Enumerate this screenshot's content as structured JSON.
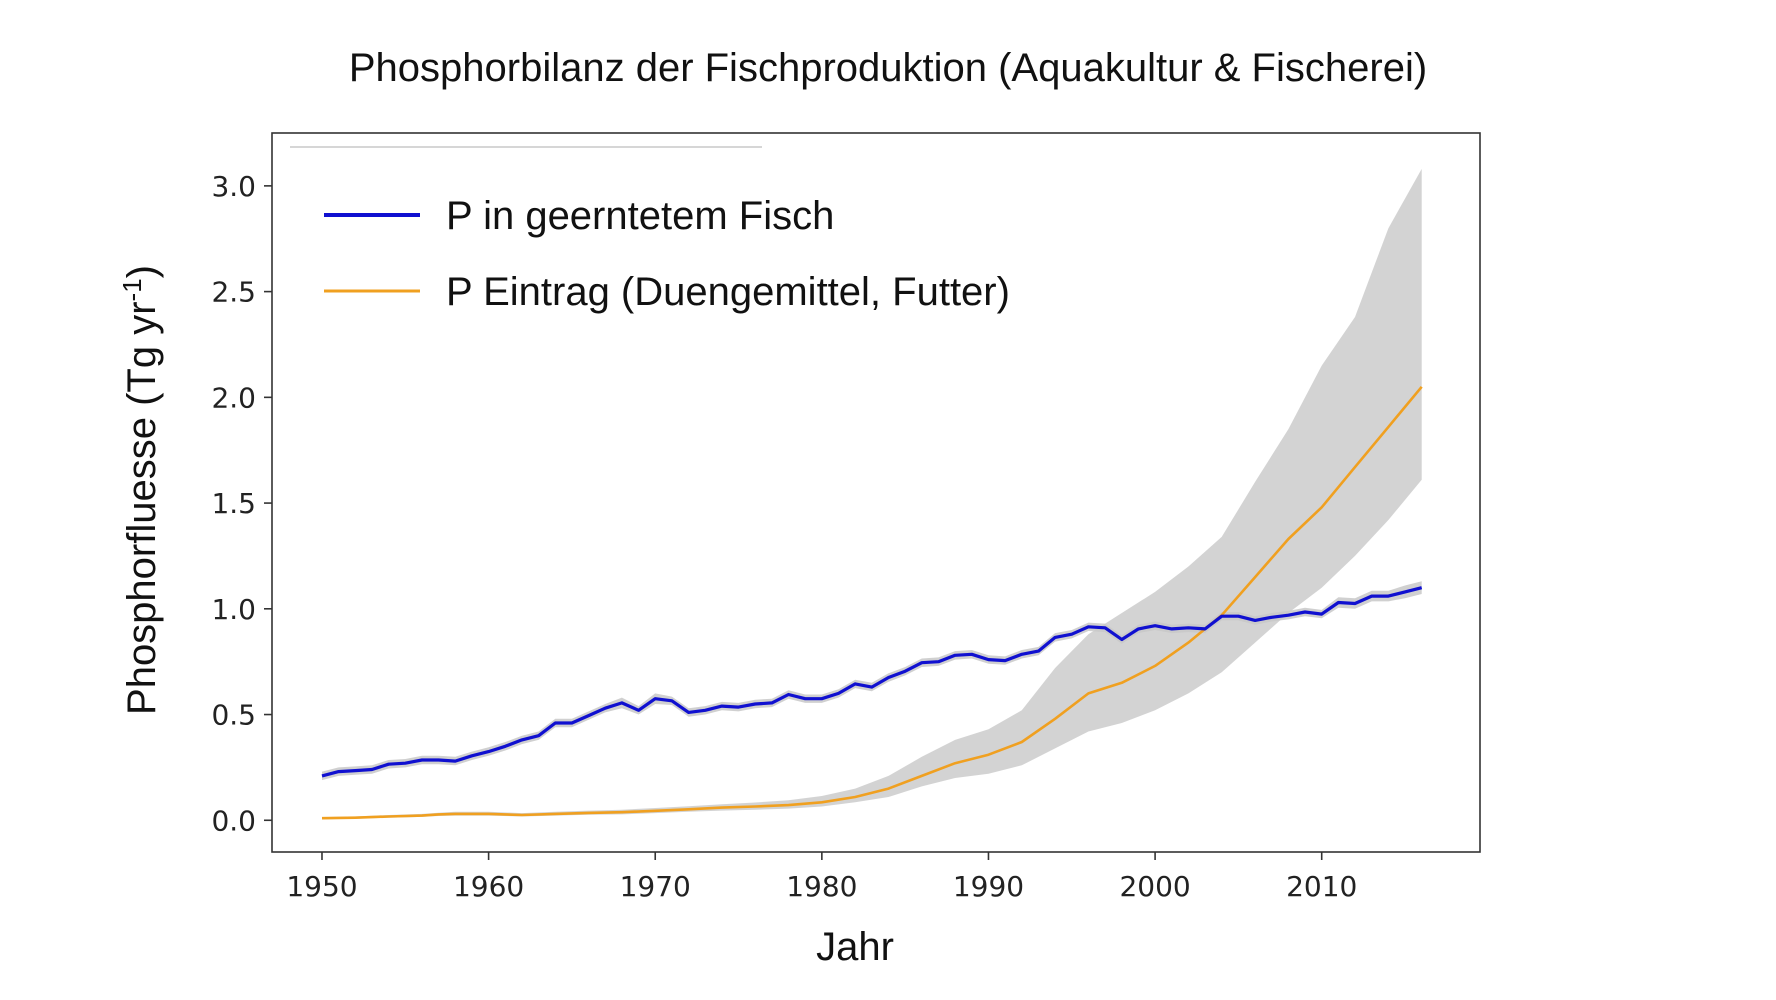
{
  "chart_data": {
    "type": "line",
    "title": "Phosphorbilanz der Fischproduktion (Aquakultur & Fischerei)",
    "xlabel": "Jahr",
    "ylabel": "Phosphorfluesse  (Tg yr",
    "ylabel_superscript": "-1",
    "ylabel_close": ")",
    "xlim": [
      1947,
      2019.5
    ],
    "ylim": [
      -0.15,
      3.25
    ],
    "xticks": [
      1950,
      1960,
      1970,
      1980,
      1990,
      2000,
      2010
    ],
    "xtick_labels": [
      "1950",
      "1960",
      "1970",
      "1980",
      "1990",
      "2000",
      "2010"
    ],
    "yticks": [
      0.0,
      0.5,
      1.0,
      1.5,
      2.0,
      2.5,
      3.0
    ],
    "ytick_labels": [
      "0.0",
      "0.5",
      "1.0",
      "1.5",
      "2.0",
      "2.5",
      "3.0"
    ],
    "legend_position": "top-left",
    "series": [
      {
        "name": "P in geerntetem Fisch",
        "color": "#1010d0",
        "x": [
          1950,
          1951,
          1952,
          1953,
          1954,
          1955,
          1956,
          1957,
          1958,
          1959,
          1960,
          1961,
          1962,
          1963,
          1964,
          1965,
          1966,
          1967,
          1968,
          1969,
          1970,
          1971,
          1972,
          1973,
          1974,
          1975,
          1976,
          1977,
          1978,
          1979,
          1980,
          1981,
          1982,
          1983,
          1984,
          1985,
          1986,
          1987,
          1988,
          1989,
          1990,
          1991,
          1992,
          1993,
          1994,
          1995,
          1996,
          1997,
          1998,
          1999,
          2000,
          2001,
          2002,
          2003,
          2004,
          2005,
          2006,
          2007,
          2008,
          2009,
          2010,
          2011,
          2012,
          2013,
          2014,
          2015,
          2016
        ],
        "values": [
          0.21,
          0.23,
          0.235,
          0.24,
          0.265,
          0.27,
          0.285,
          0.285,
          0.28,
          0.305,
          0.325,
          0.35,
          0.38,
          0.4,
          0.46,
          0.46,
          0.495,
          0.53,
          0.555,
          0.52,
          0.575,
          0.565,
          0.51,
          0.52,
          0.54,
          0.535,
          0.55,
          0.555,
          0.595,
          0.575,
          0.575,
          0.6,
          0.645,
          0.63,
          0.675,
          0.705,
          0.745,
          0.75,
          0.78,
          0.785,
          0.76,
          0.755,
          0.785,
          0.8,
          0.865,
          0.88,
          0.915,
          0.91,
          0.855,
          0.905,
          0.92,
          0.905,
          0.91,
          0.905,
          0.965,
          0.965,
          0.945,
          0.96,
          0.97,
          0.985,
          0.975,
          1.03,
          1.025,
          1.06,
          1.06,
          1.08,
          1.1
        ],
        "band_low": [
          0.19,
          0.21,
          0.215,
          0.22,
          0.245,
          0.25,
          0.265,
          0.265,
          0.26,
          0.285,
          0.305,
          0.33,
          0.36,
          0.38,
          0.44,
          0.44,
          0.475,
          0.51,
          0.53,
          0.5,
          0.55,
          0.545,
          0.49,
          0.5,
          0.52,
          0.515,
          0.53,
          0.535,
          0.575,
          0.555,
          0.555,
          0.58,
          0.625,
          0.61,
          0.655,
          0.685,
          0.725,
          0.73,
          0.76,
          0.765,
          0.74,
          0.735,
          0.765,
          0.78,
          0.845,
          0.86,
          0.895,
          0.89,
          0.835,
          0.885,
          0.9,
          0.885,
          0.89,
          0.885,
          0.945,
          0.945,
          0.925,
          0.94,
          0.95,
          0.965,
          0.955,
          1.005,
          1.0,
          1.035,
          1.035,
          1.05,
          1.07
        ],
        "band_high": [
          0.23,
          0.25,
          0.255,
          0.26,
          0.285,
          0.29,
          0.305,
          0.305,
          0.3,
          0.325,
          0.345,
          0.37,
          0.4,
          0.42,
          0.48,
          0.48,
          0.515,
          0.55,
          0.58,
          0.54,
          0.6,
          0.585,
          0.53,
          0.54,
          0.56,
          0.555,
          0.57,
          0.575,
          0.615,
          0.595,
          0.595,
          0.62,
          0.665,
          0.65,
          0.695,
          0.725,
          0.765,
          0.77,
          0.8,
          0.805,
          0.78,
          0.775,
          0.805,
          0.82,
          0.885,
          0.9,
          0.935,
          0.93,
          0.875,
          0.925,
          0.94,
          0.925,
          0.93,
          0.925,
          0.985,
          0.985,
          0.965,
          0.98,
          0.99,
          1.005,
          0.995,
          1.055,
          1.05,
          1.085,
          1.085,
          1.11,
          1.13
        ]
      },
      {
        "name": "P Eintrag (Duengemittel, Futter)",
        "color": "#f0a020",
        "x": [
          1950,
          1952,
          1954,
          1956,
          1957,
          1958,
          1960,
          1962,
          1964,
          1966,
          1968,
          1970,
          1972,
          1974,
          1976,
          1978,
          1980,
          1982,
          1984,
          1986,
          1988,
          1990,
          1992,
          1994,
          1996,
          1998,
          2000,
          2002,
          2004,
          2006,
          2008,
          2010,
          2012,
          2014,
          2016
        ],
        "values": [
          0.01,
          0.012,
          0.018,
          0.022,
          0.028,
          0.03,
          0.03,
          0.025,
          0.03,
          0.035,
          0.038,
          0.045,
          0.052,
          0.06,
          0.065,
          0.072,
          0.085,
          0.11,
          0.15,
          0.21,
          0.27,
          0.31,
          0.37,
          0.48,
          0.6,
          0.65,
          0.73,
          0.84,
          0.97,
          1.15,
          1.33,
          1.48,
          1.67,
          1.86,
          2.05
        ],
        "band_low": [
          0.005,
          0.007,
          0.012,
          0.016,
          0.02,
          0.022,
          0.022,
          0.018,
          0.022,
          0.026,
          0.028,
          0.034,
          0.04,
          0.046,
          0.05,
          0.055,
          0.065,
          0.085,
          0.11,
          0.16,
          0.2,
          0.22,
          0.26,
          0.34,
          0.42,
          0.46,
          0.52,
          0.6,
          0.7,
          0.84,
          0.98,
          1.1,
          1.25,
          1.42,
          1.61
        ],
        "band_high": [
          0.015,
          0.018,
          0.025,
          0.03,
          0.036,
          0.04,
          0.04,
          0.034,
          0.04,
          0.046,
          0.05,
          0.058,
          0.066,
          0.076,
          0.084,
          0.095,
          0.115,
          0.15,
          0.21,
          0.3,
          0.38,
          0.43,
          0.52,
          0.72,
          0.88,
          0.98,
          1.08,
          1.2,
          1.34,
          1.6,
          1.85,
          2.15,
          2.38,
          2.8,
          3.08
        ]
      }
    ]
  }
}
